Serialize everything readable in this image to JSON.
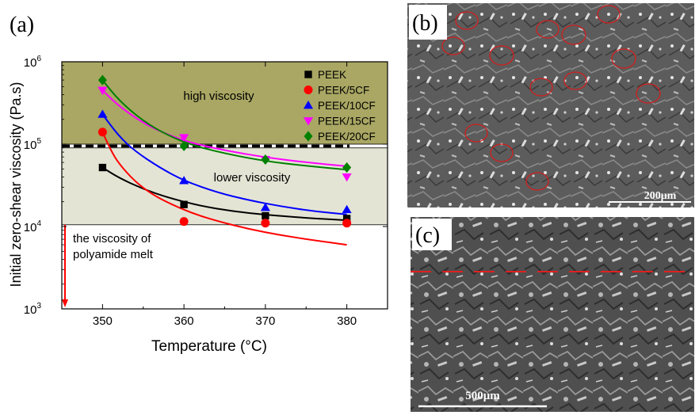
{
  "panels": {
    "a": {
      "label": "(a)"
    },
    "b": {
      "label": "(b)",
      "scale_bar": "200μm"
    },
    "c": {
      "label": "(c)",
      "scale_bar": "500μm"
    }
  },
  "chart_data": {
    "type": "scatter",
    "xlabel": "Temperature (°C)",
    "ylabel": "Initial zero-shear viscosity (Pa.s)",
    "xlim": [
      345,
      385
    ],
    "ylim": [
      1000,
      1000000
    ],
    "yscale": "log",
    "x_ticks": [
      350,
      360,
      370,
      380
    ],
    "y_ticks": [
      {
        "base": "10",
        "exp": "3",
        "value": 1000
      },
      {
        "base": "10",
        "exp": "4",
        "value": 10000
      },
      {
        "base": "10",
        "exp": "5",
        "value": 100000
      },
      {
        "base": "10",
        "exp": "6",
        "value": 1000000
      }
    ],
    "legend_position": "top-right",
    "regions": [
      {
        "label": "high viscosity",
        "from": 100000,
        "to": 1000000,
        "color": "#a9a763"
      },
      {
        "label": "lower viscosity",
        "from": 10500,
        "to": 90000,
        "color": "#e4e4d4"
      }
    ],
    "threshold": 95000,
    "annotation": {
      "lines": [
        "the viscosity of",
        "polyamide melt"
      ]
    },
    "series": [
      {
        "name": "PEEK",
        "color": "#000000",
        "marker": "square",
        "x": [
          350,
          360,
          370,
          380
        ],
        "y": [
          52000,
          18500,
          13500,
          12500
        ],
        "fit_x": [
          350,
          352,
          355,
          358,
          362,
          366,
          370,
          375,
          380
        ],
        "fit_y": [
          52000,
          39000,
          28500,
          22500,
          17800,
          15300,
          13900,
          12700,
          11900
        ]
      },
      {
        "name": "PEEK/5CF",
        "color": "#ff0000",
        "marker": "circle",
        "x": [
          350,
          360,
          370,
          380
        ],
        "y": [
          140000,
          11500,
          11000,
          11000
        ],
        "fit_x": [
          350,
          351,
          352,
          354,
          356,
          358,
          361,
          364,
          368,
          372,
          376,
          380
        ],
        "fit_y": [
          140000,
          85000,
          58000,
          35000,
          25000,
          19500,
          14500,
          11700,
          9300,
          7800,
          6800,
          6000
        ]
      },
      {
        "name": "PEEK/10CF",
        "color": "#0000ff",
        "marker": "triangle-up",
        "x": [
          350,
          360,
          370,
          380
        ],
        "y": [
          230000,
          36000,
          17000,
          16000
        ],
        "fit_x": [
          350,
          352,
          354,
          357,
          360,
          364,
          368,
          372,
          376,
          380
        ],
        "fit_y": [
          230000,
          125000,
          82000,
          52000,
          36000,
          26000,
          20800,
          17500,
          15300,
          14000
        ]
      },
      {
        "name": "PEEK/15CF",
        "color": "#ff00ff",
        "marker": "triangle-down",
        "x": [
          350,
          360,
          370,
          380
        ],
        "y": [
          450000,
          120000,
          65000,
          40000
        ],
        "fit_x": [
          350,
          352,
          355,
          358,
          361,
          365,
          370,
          375,
          380
        ],
        "fit_y": [
          450000,
          290000,
          180000,
          130000,
          103000,
          84000,
          69000,
          60000,
          54000
        ]
      },
      {
        "name": "PEEK/20CF",
        "color": "#008000",
        "marker": "diamond",
        "x": [
          350,
          360,
          370,
          380
        ],
        "y": [
          600000,
          95000,
          65000,
          52000
        ],
        "fit_x": [
          350,
          352,
          355,
          358,
          361,
          365,
          370,
          375,
          380
        ],
        "fit_y": [
          600000,
          340000,
          190000,
          128000,
          97000,
          77000,
          62000,
          54500,
          49000
        ]
      }
    ]
  }
}
